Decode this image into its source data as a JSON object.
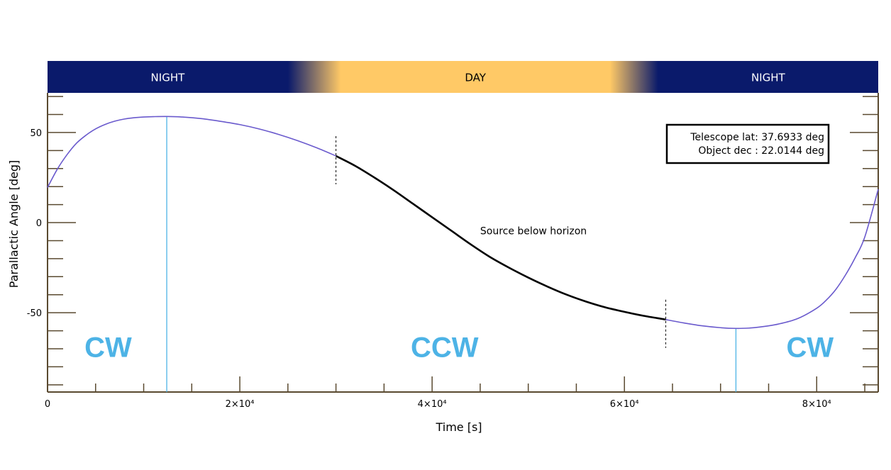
{
  "chart_data": {
    "type": "line",
    "title": "",
    "xlabel": "Time [s]",
    "ylabel": "Parallactic Angle [deg]",
    "xlim": [
      0,
      86400
    ],
    "ylim": [
      -94,
      72
    ],
    "x_ticks": [
      {
        "value": 0,
        "label": "0"
      },
      {
        "value": 20000,
        "label": "2×10⁴"
      },
      {
        "value": 40000,
        "label": "4×10⁴"
      },
      {
        "value": 60000,
        "label": "6×10⁴"
      },
      {
        "value": 80000,
        "label": "8×10⁴"
      }
    ],
    "y_ticks": [
      {
        "value": 50,
        "label": "50"
      },
      {
        "value": 0,
        "label": "0"
      },
      {
        "value": -50,
        "label": "-50"
      }
    ],
    "series": [
      {
        "color": "#6a5acd",
        "x": [
          0,
          1000,
          2000,
          3000,
          4000,
          5000,
          6000,
          7000,
          8000,
          9000,
          10000,
          11000,
          12400,
          14000,
          16000,
          18000,
          20000,
          22000,
          24000,
          26000,
          28000,
          30000,
          32000,
          34000,
          36000,
          38000,
          40000,
          42000,
          44000,
          46000,
          48000,
          50000,
          52000,
          54000,
          56000,
          58000,
          60000,
          62000,
          64000,
          66000,
          68000,
          70000,
          71600,
          73000,
          74000,
          76000,
          78000,
          80000,
          81000,
          82000,
          83000,
          84000,
          85000,
          86400
        ],
        "y": [
          19.5,
          29.5,
          37.5,
          44,
          48.5,
          52,
          54.5,
          56.3,
          57.5,
          58.2,
          58.6,
          58.8,
          58.9,
          58.6,
          57.7,
          56.2,
          54.4,
          52,
          49,
          45.5,
          41.5,
          37,
          31.5,
          25,
          18,
          10.5,
          3,
          -4.5,
          -12,
          -19,
          -25,
          -30.5,
          -35.5,
          -40,
          -43.8,
          -47,
          -49.5,
          -51.7,
          -53.5,
          -55.5,
          -57.2,
          -58.3,
          -58.7,
          -58.5,
          -58,
          -56.3,
          -53.3,
          -47.5,
          -43,
          -37,
          -29,
          -19.5,
          -8,
          18.5
        ]
      }
    ],
    "source_below_horizon": {
      "from": 30000,
      "to": 64300
    },
    "markers": {
      "extrema": [
        12400,
        71600
      ],
      "horizon_crossings": [
        30000,
        64300
      ]
    },
    "bands": [
      {
        "label": "NIGHT",
        "from": 0,
        "to": 25000,
        "color": "#0a1a6b"
      },
      {
        "label": "DAY",
        "from": 30500,
        "to": 58500,
        "color": "#ffc966"
      },
      {
        "label": "NIGHT",
        "from": 63500,
        "to": 86400,
        "color": "#0a1a6b"
      }
    ],
    "annotations": [
      {
        "text": "Source below horizon",
        "x": 45000,
        "y": -4.5
      },
      {
        "text": "CW",
        "x": 6300,
        "y": -69
      },
      {
        "text": "CCW",
        "x": 41300,
        "y": -69
      },
      {
        "text": "CW",
        "x": 79300,
        "y": -69
      }
    ],
    "info_box": [
      "Telescope lat: 37.6933 deg",
      "Object dec : 22.0144 deg"
    ],
    "grid": false,
    "legend": "none"
  }
}
